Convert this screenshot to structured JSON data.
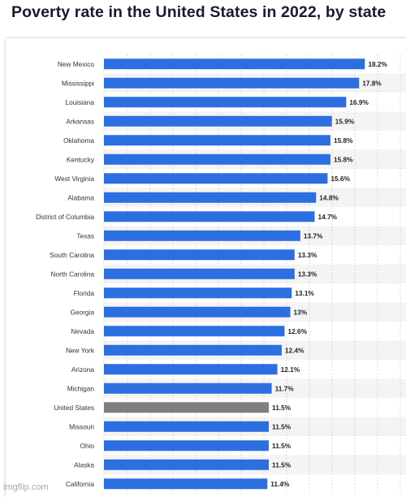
{
  "page": {
    "title": "Poverty rate in the United States in 2022, by state",
    "watermark": "imgflip.com"
  },
  "colors": {
    "bar": "#2b6fe0",
    "highlight": "#7f7f7f",
    "stripe": "#f4f4f4",
    "grid": "#c9c9c9",
    "label": "#333333",
    "value": "#222222"
  },
  "chart_data": {
    "type": "bar",
    "orientation": "horizontal",
    "title": "Poverty rate in the United States in 2022, by state",
    "xlabel": "",
    "ylabel": "",
    "xlim": [
      0,
      20
    ],
    "grid": true,
    "value_suffix": "%",
    "highlight_category": "United States",
    "categories": [
      "New Mexico",
      "Mississippi",
      "Louisiana",
      "Arkansas",
      "Oklahoma",
      "Kentucky",
      "West Virginia",
      "Alabama",
      "District of Columbia",
      "Texas",
      "South Carolina",
      "North Carolina",
      "Florida",
      "Georgia",
      "Nevada",
      "New York",
      "Arizona",
      "Michigan",
      "United States",
      "Missouri",
      "Ohio",
      "Alaska",
      "California"
    ],
    "values": [
      18.2,
      17.8,
      16.9,
      15.9,
      15.8,
      15.8,
      15.6,
      14.8,
      14.7,
      13.7,
      13.3,
      13.3,
      13.1,
      13,
      12.6,
      12.4,
      12.1,
      11.7,
      11.5,
      11.5,
      11.5,
      11.5,
      11.4
    ]
  }
}
